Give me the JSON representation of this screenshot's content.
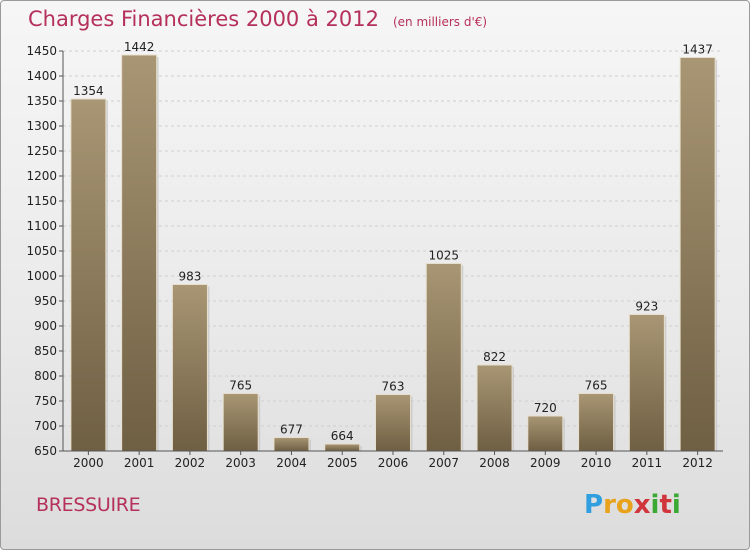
{
  "chart_data": {
    "type": "bar",
    "title": "Charges Financières 2000 à 2012",
    "subtitle": "(en milliers d'€)",
    "categories": [
      "2000",
      "2001",
      "2002",
      "2003",
      "2004",
      "2005",
      "2006",
      "2007",
      "2008",
      "2009",
      "2010",
      "2011",
      "2012"
    ],
    "values": [
      1354,
      1442,
      983,
      765,
      677,
      664,
      763,
      1025,
      822,
      720,
      765,
      923,
      1437
    ],
    "data_labels": [
      "1354",
      "1442",
      "983",
      "765",
      "677",
      "664",
      "763",
      "1025",
      "822",
      "720",
      "765",
      "923",
      "1437"
    ],
    "ylim": [
      650,
      1450
    ],
    "yticks": [
      "650",
      "700",
      "750",
      "800",
      "850",
      "900",
      "950",
      "1000",
      "1050",
      "1100",
      "1150",
      "1200",
      "1250",
      "1300",
      "1350",
      "1400",
      "1450"
    ],
    "grid": true,
    "bar_color": "#8b7a5b"
  },
  "footer": {
    "place": "BRESSUIRE",
    "logo": [
      "P",
      "r",
      "o",
      "x",
      "i",
      "t",
      "i"
    ],
    "logo_colors": [
      "#2f9fe0",
      "#e8a21c",
      "#e8a21c",
      "#d0353b",
      "#3aaa35",
      "#d0353b",
      "#3aaa35"
    ]
  }
}
